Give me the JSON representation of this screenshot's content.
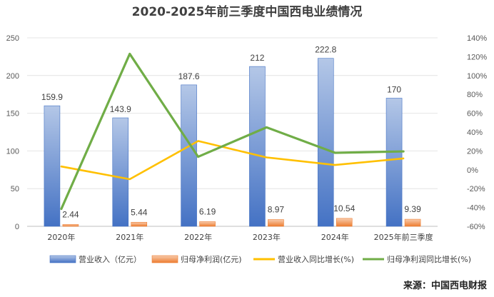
{
  "chart_data": {
    "type": "bar",
    "title": "2020-2025年前三季度中国西电业绩情况",
    "categories": [
      "2020年",
      "2021年",
      "2022年",
      "2023年",
      "2024年",
      "2025年前三季度"
    ],
    "y_left": {
      "ylim": [
        0,
        250
      ],
      "ticks": [
        "0",
        "50",
        "100",
        "150",
        "200",
        "250"
      ]
    },
    "y_right": {
      "ylim": [
        -60,
        140
      ],
      "ticks": [
        "-60%",
        "-40%",
        "-20%",
        "0%",
        "20%",
        "40%",
        "60%",
        "80%",
        "100%",
        "120%",
        "140%"
      ]
    },
    "series": [
      {
        "name": "营业收入（亿元）",
        "kind": "bar",
        "axis": "left",
        "values": [
          159.9,
          143.9,
          187.6,
          212,
          222.8,
          170
        ],
        "labels": [
          "159.9",
          "143.9",
          "187.6",
          "212",
          "222.8",
          "170"
        ],
        "color": "#4472C4"
      },
      {
        "name": "归母净利润(亿元)",
        "kind": "bar",
        "axis": "left",
        "values": [
          2.44,
          5.44,
          6.19,
          8.97,
          10.54,
          9.39
        ],
        "labels": [
          "2.44",
          "5.44",
          "6.19",
          "8.97",
          "10.54",
          "9.39"
        ],
        "color": "#ED7D31"
      },
      {
        "name": "营业收入同比增长(%)",
        "kind": "line",
        "axis": "right",
        "values": [
          3.5,
          -10,
          30.5,
          13.1,
          5.1,
          12
        ],
        "color": "#FFC000"
      },
      {
        "name": "归母净利润同比增长(%)",
        "kind": "line",
        "axis": "right",
        "values": [
          -41.5,
          123,
          13.8,
          45,
          18,
          19.5
        ],
        "color": "#70AD47"
      }
    ]
  },
  "source": "来源：中国西电财报"
}
